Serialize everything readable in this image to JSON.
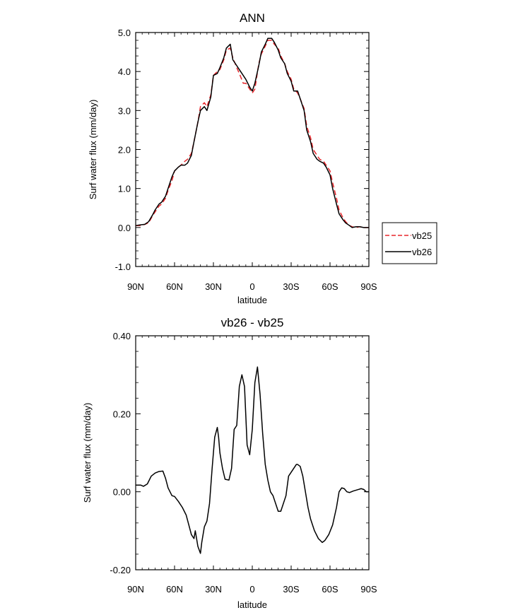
{
  "chart_data": [
    {
      "type": "line",
      "title": "ANN",
      "xlabel": "latitude",
      "ylabel": "Surf water flux (mm/day)",
      "xlim": [
        90,
        -90
      ],
      "ylim": [
        -1.0,
        5.0
      ],
      "x_ticks": [
        90,
        60,
        30,
        0,
        -30,
        -60,
        -90
      ],
      "x_tick_labels": [
        "90N",
        "60N",
        "30N",
        "0",
        "30S",
        "60S",
        "90S"
      ],
      "y_ticks": [
        -1.0,
        0.0,
        1.0,
        2.0,
        3.0,
        4.0,
        5.0
      ],
      "y_tick_labels": [
        "-1.0",
        "0.0",
        "1.0",
        "2.0",
        "3.0",
        "4.0",
        "5.0"
      ],
      "legend_position": "right, outside plot",
      "series": [
        {
          "name": "vb25",
          "color": "#e8262b",
          "dash": "dashed",
          "x": [
            90,
            86,
            83,
            80,
            77,
            75,
            72,
            70,
            67,
            65,
            62,
            60,
            57,
            55,
            52,
            50,
            47,
            45,
            42,
            40,
            37,
            35,
            32,
            30,
            27,
            25,
            22,
            20,
            17,
            15,
            12,
            10,
            7,
            5,
            2,
            0,
            -2,
            -5,
            -7,
            -10,
            -12,
            -15,
            -17,
            -20,
            -22,
            -25,
            -27,
            -30,
            -32,
            -35,
            -37,
            -40,
            -42,
            -45,
            -47,
            -50,
            -52,
            -55,
            -57,
            -60,
            -62,
            -65,
            -67,
            -70,
            -72,
            -75,
            -77,
            -80,
            -83,
            -86,
            -90
          ],
          "y": [
            0.05,
            0.05,
            0.08,
            0.12,
            0.3,
            0.4,
            0.55,
            0.6,
            0.75,
            0.95,
            1.2,
            1.45,
            1.55,
            1.6,
            1.7,
            1.75,
            1.9,
            2.2,
            2.7,
            3.1,
            3.2,
            3.1,
            3.4,
            3.9,
            4.0,
            4.05,
            4.3,
            4.55,
            4.6,
            4.35,
            4.1,
            3.95,
            3.7,
            3.7,
            3.55,
            3.45,
            3.55,
            4.2,
            4.45,
            4.65,
            4.8,
            4.8,
            4.7,
            4.6,
            4.4,
            4.2,
            4.0,
            3.8,
            3.55,
            3.45,
            3.3,
            3.05,
            2.6,
            2.3,
            2.0,
            1.85,
            1.75,
            1.7,
            1.6,
            1.45,
            1.15,
            0.75,
            0.45,
            0.25,
            0.15,
            0.05,
            0.02,
            0.0,
            0.02,
            0.0,
            0.0
          ]
        },
        {
          "name": "vb26",
          "color": "#000000",
          "dash": "solid",
          "x": [
            90,
            86,
            83,
            80,
            77,
            75,
            72,
            70,
            67,
            65,
            62,
            60,
            57,
            55,
            52,
            50,
            47,
            45,
            42,
            40,
            37,
            35,
            32,
            30,
            27,
            25,
            22,
            20,
            17,
            15,
            12,
            10,
            7,
            5,
            2,
            0,
            -2,
            -5,
            -7,
            -10,
            -12,
            -15,
            -17,
            -20,
            -22,
            -25,
            -27,
            -30,
            -32,
            -35,
            -37,
            -40,
            -42,
            -45,
            -47,
            -50,
            -52,
            -55,
            -57,
            -60,
            -62,
            -65,
            -67,
            -70,
            -72,
            -75,
            -77,
            -80,
            -83,
            -86,
            -90
          ],
          "y": [
            0.05,
            0.07,
            0.08,
            0.15,
            0.32,
            0.45,
            0.6,
            0.65,
            0.8,
            1.0,
            1.3,
            1.45,
            1.55,
            1.6,
            1.6,
            1.65,
            1.85,
            2.2,
            2.7,
            3.0,
            3.1,
            3.0,
            3.35,
            3.9,
            3.95,
            4.1,
            4.35,
            4.6,
            4.7,
            4.3,
            4.15,
            4.05,
            3.9,
            3.8,
            3.6,
            3.5,
            3.7,
            4.15,
            4.5,
            4.7,
            4.85,
            4.85,
            4.75,
            4.55,
            4.35,
            4.2,
            3.95,
            3.75,
            3.5,
            3.5,
            3.3,
            3.0,
            2.5,
            2.2,
            1.9,
            1.75,
            1.7,
            1.65,
            1.55,
            1.35,
            1.0,
            0.6,
            0.35,
            0.2,
            0.12,
            0.05,
            0.0,
            0.02,
            0.02,
            0.0,
            0.0
          ]
        }
      ]
    },
    {
      "type": "line",
      "title": "vb26 - vb25",
      "xlabel": "latitude",
      "ylabel": "Surf water flux (mm/day)",
      "xlim": [
        90,
        -90
      ],
      "ylim": [
        -0.2,
        0.4
      ],
      "x_ticks": [
        90,
        60,
        30,
        0,
        -30,
        -60,
        -90
      ],
      "x_tick_labels": [
        "90N",
        "60N",
        "30N",
        "0",
        "30S",
        "60S",
        "90S"
      ],
      "y_ticks": [
        -0.2,
        0.0,
        0.2,
        0.4
      ],
      "y_tick_labels": [
        "-0.20",
        "0.00",
        "0.20",
        "0.40"
      ],
      "series": [
        {
          "color": "#000000",
          "dash": "solid",
          "x": [
            90,
            86,
            84,
            81,
            78,
            75,
            72,
            69,
            67,
            65,
            62,
            60,
            57,
            54,
            51,
            49,
            47,
            45,
            44,
            42,
            40,
            39,
            37,
            35,
            33,
            31,
            29,
            27,
            26,
            25,
            23,
            21,
            18,
            16,
            14,
            12,
            10,
            8,
            6,
            4,
            2,
            0,
            -2,
            -4,
            -6,
            -8,
            -10,
            -12,
            -14,
            -16,
            -18,
            -20,
            -22,
            -24,
            -26,
            -28,
            -30,
            -32,
            -34,
            -35,
            -37,
            -39,
            -41,
            -43,
            -45,
            -48,
            -51,
            -54,
            -56,
            -59,
            -62,
            -65,
            -67,
            -69,
            -71,
            -73,
            -75,
            -78,
            -81,
            -84,
            -86,
            -88,
            -90
          ],
          "y": [
            0.017,
            0.017,
            0.014,
            0.02,
            0.04,
            0.048,
            0.052,
            0.053,
            0.035,
            0.01,
            -0.01,
            -0.012,
            -0.025,
            -0.04,
            -0.06,
            -0.085,
            -0.11,
            -0.12,
            -0.1,
            -0.14,
            -0.158,
            -0.13,
            -0.09,
            -0.075,
            -0.03,
            0.06,
            0.14,
            0.165,
            0.14,
            0.1,
            0.06,
            0.032,
            0.03,
            0.06,
            0.16,
            0.17,
            0.27,
            0.3,
            0.27,
            0.12,
            0.095,
            0.16,
            0.28,
            0.32,
            0.25,
            0.15,
            0.07,
            0.03,
            0.0,
            -0.01,
            -0.03,
            -0.05,
            -0.05,
            -0.03,
            -0.01,
            0.04,
            0.05,
            0.06,
            0.07,
            0.07,
            0.065,
            0.04,
            0.0,
            -0.04,
            -0.07,
            -0.1,
            -0.12,
            -0.13,
            -0.125,
            -0.11,
            -0.085,
            -0.04,
            0.0,
            0.01,
            0.008,
            0.0,
            -0.002,
            0.002,
            0.005,
            0.008,
            0.006,
            0.0,
            0.0
          ]
        }
      ]
    }
  ]
}
